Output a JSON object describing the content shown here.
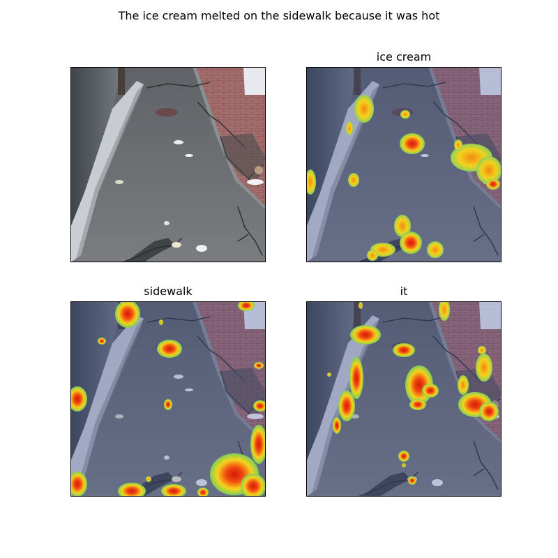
{
  "figure": {
    "title": "The ice cream melted on the sidewalk because it was hot"
  },
  "panels": [
    {
      "title": "",
      "kind": "original"
    },
    {
      "title": "ice cream",
      "kind": "attention-overlay"
    },
    {
      "title": "sidewalk",
      "kind": "attention-overlay"
    },
    {
      "title": "it",
      "kind": "attention-overlay"
    }
  ],
  "colors": {
    "asphalt": "#6f7275",
    "asphalt_dark": "#4f5357",
    "curb_brick": "#a8706f",
    "snow": "#dfe3ea",
    "overlay_tint": "#3a4a9a",
    "heat_low": "#7ccf5a",
    "heat_mid": "#f3d21a",
    "heat_high": "#e8360f"
  }
}
